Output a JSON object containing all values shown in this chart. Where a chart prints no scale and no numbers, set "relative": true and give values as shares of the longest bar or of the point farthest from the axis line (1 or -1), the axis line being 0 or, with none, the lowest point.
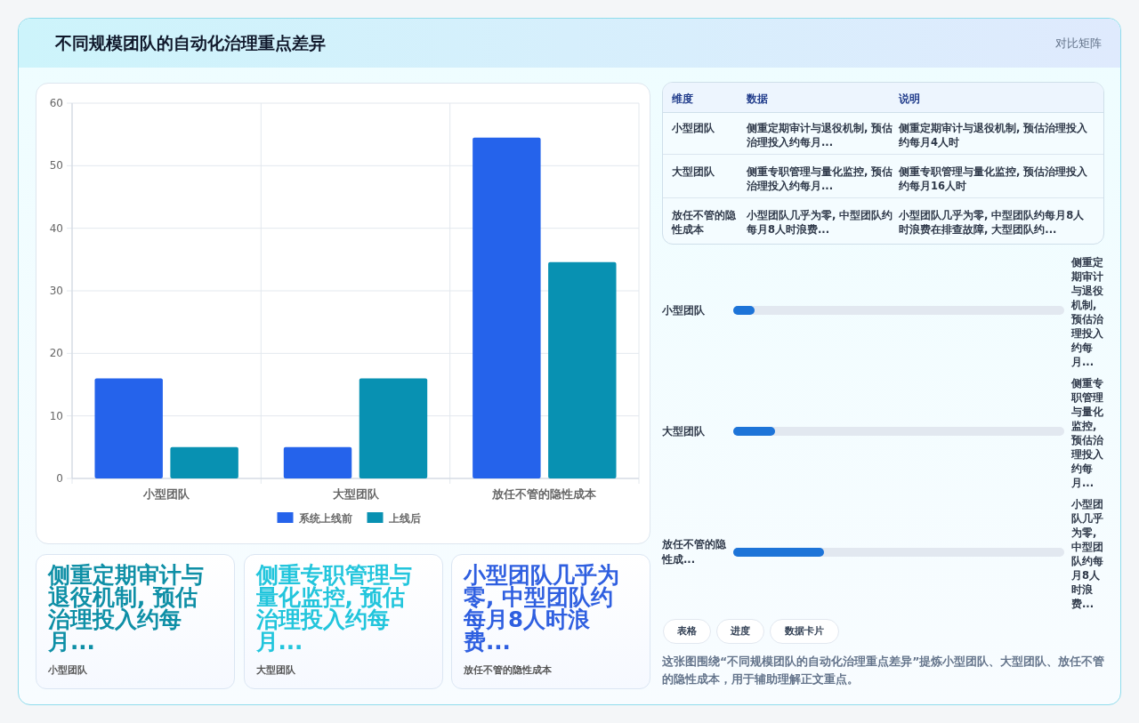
{
  "chart_data": [
    {
      "type": "bar",
      "title": "不同规模团队的自动化治理重点差异",
      "categories": [
        "小型团队",
        "大型团队",
        "放任不管的隐性成本"
      ],
      "series": [
        {
          "name": "系统上线前",
          "color": "#2563eb",
          "values": [
            16,
            5,
            54.5
          ]
        },
        {
          "name": "上线后",
          "color": "#0891b2",
          "values": [
            5,
            16,
            34.6
          ]
        }
      ],
      "ylim": [
        0,
        60
      ],
      "yticks": [
        0,
        10,
        20,
        30,
        40,
        50,
        60
      ],
      "grid": true,
      "legend": "bottom"
    },
    {
      "type": "other",
      "subtitle": "对比矩阵",
      "annotations": [
        "维度",
        "数据",
        "说明",
        "小型团队",
        "侧重定期审计与退役机制, 预估治理投入约每月...",
        "侧重定期审计与退役机制, 预估治理投入约每月4人时",
        "大型团队",
        "侧重专职管理与量化监控, 预估治理投入约每月...",
        "侧重专职管理与量化监控, 预估治理投入约每月16人时",
        "放任不管的隐性成本",
        "小型团队几乎为零, 中型团队约每月8人时浪费...",
        "小型团队几乎为零, 中型团队约每月8人时浪费在排查故障, 大型团队约..."
      ]
    },
    {
      "type": "bar",
      "orientation": "horizontal",
      "relative": true,
      "categories": [
        "小型团队",
        "大型团队",
        "放任不管的隐性成..."
      ],
      "values": [
        0.234,
        0.458,
        1
      ],
      "color": "#1d74d8",
      "annotations": [
        "侧重定期审计与退役机制, 预估治理投入约每月...",
        "侧重专职管理与量化监控, 预估治理投入约每月...",
        "小型团队几乎为零, 中型团队约每月8人时浪费...",
        "表格",
        "进度",
        "数据卡片",
        "这张图围绕“不同规模团队的自动化治理重点差异”提炼小型团队、大型团队、放任不管的隐性成本，用于辅助理解正文重点。"
      ]
    },
    {
      "type": "other",
      "annotations": [
        "侧重定期审计与退役机制, 预估治理投入约每月...",
        "小型团队",
        "侧重专职管理与量化监控, 预估治理投入约每月...",
        "大型团队",
        "小型团队几乎为零, 中型团队约每月8人时浪费...",
        "放任不管的隐性成本"
      ]
    }
  ]
}
